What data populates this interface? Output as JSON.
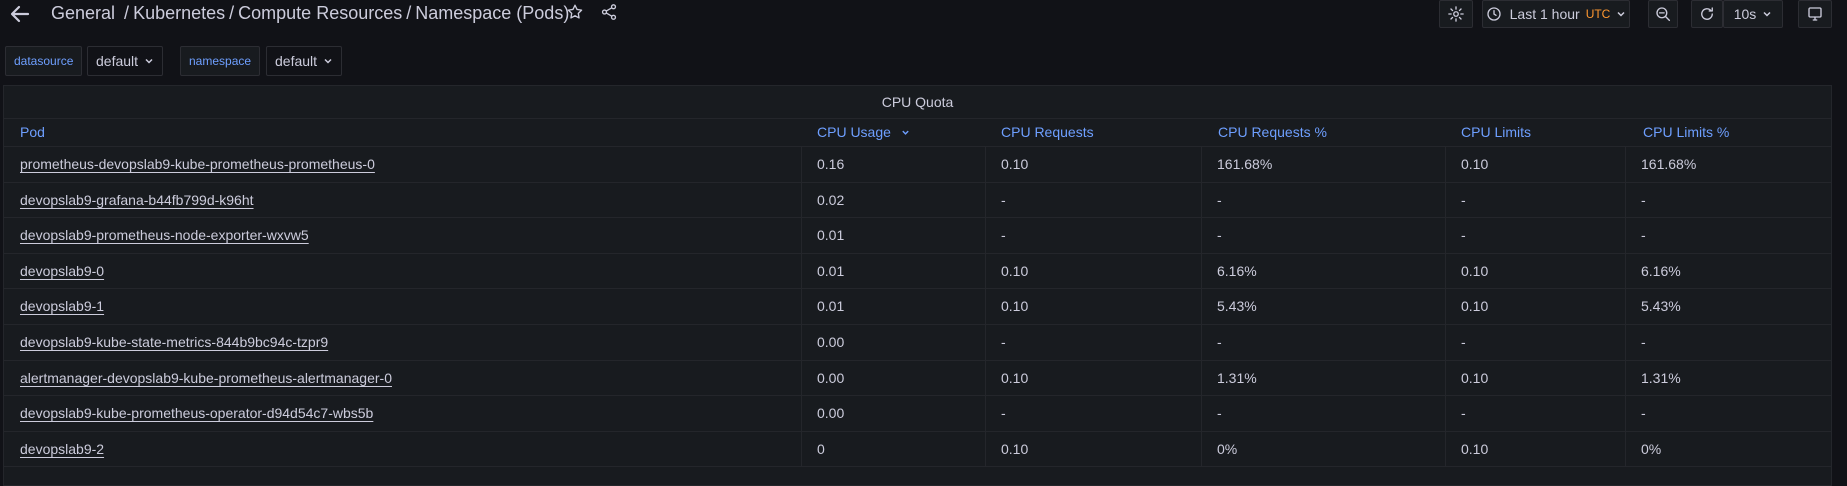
{
  "header": {
    "breadcrumb": [
      "General",
      "Kubernetes",
      "Compute Resources",
      "Namespace (Pods)"
    ]
  },
  "toolbar": {
    "time_range": "Last 1 hour",
    "timezone": "UTC",
    "refresh_interval": "10s"
  },
  "variables": [
    {
      "label": "datasource",
      "value": "default"
    },
    {
      "label": "namespace",
      "value": "default"
    }
  ],
  "panel": {
    "title": "CPU Quota",
    "columns": [
      "Pod",
      "CPU Usage",
      "CPU Requests",
      "CPU Requests %",
      "CPU Limits",
      "CPU Limits %"
    ],
    "rows": [
      [
        "prometheus-devopslab9-kube-prometheus-prometheus-0",
        "0.16",
        "0.10",
        "161.68%",
        "0.10",
        "161.68%"
      ],
      [
        "devopslab9-grafana-b44fb799d-k96ht",
        "0.02",
        "-",
        "-",
        "-",
        "-"
      ],
      [
        "devopslab9-prometheus-node-exporter-wxvw5",
        "0.01",
        "-",
        "-",
        "-",
        "-"
      ],
      [
        "devopslab9-0",
        "0.01",
        "0.10",
        "6.16%",
        "0.10",
        "6.16%"
      ],
      [
        "devopslab9-1",
        "0.01",
        "0.10",
        "5.43%",
        "0.10",
        "5.43%"
      ],
      [
        "devopslab9-kube-state-metrics-844b9bc94c-tzpr9",
        "0.00",
        "-",
        "-",
        "-",
        "-"
      ],
      [
        "alertmanager-devopslab9-kube-prometheus-alertmanager-0",
        "0.00",
        "0.10",
        "1.31%",
        "0.10",
        "1.31%"
      ],
      [
        "devopslab9-kube-prometheus-operator-d94d54c7-wbs5b",
        "0.00",
        "-",
        "-",
        "-",
        "-"
      ],
      [
        "devopslab9-2",
        "0",
        "0.10",
        "0%",
        "0.10",
        "0%"
      ]
    ]
  },
  "colors": {
    "background": "#111217",
    "panel": "#181b1f",
    "link_blue": "#6e9fff",
    "utc_orange": "#ff9830"
  }
}
